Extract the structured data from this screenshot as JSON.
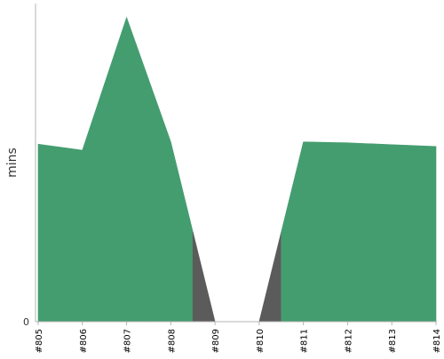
{
  "colors": {
    "success": "#449D6F",
    "failure": "#5B5B5B",
    "axis": "#B4B4B4",
    "text": "#333333"
  },
  "chart_data": {
    "type": "area",
    "ylabel": "mins",
    "xlabel": "",
    "y_tick_labels": [
      "0"
    ],
    "ylim": [
      0,
      6.9
    ],
    "categories": [
      "#805",
      "#806",
      "#807",
      "#808",
      "#809",
      "#810",
      "#811",
      "#812",
      "#813",
      "#814"
    ],
    "values": [
      3.85,
      3.72,
      6.6,
      3.9,
      0,
      0,
      3.9,
      3.88,
      3.84,
      3.8
    ],
    "status": [
      "success",
      "success",
      "success",
      "success",
      "failure",
      "failure",
      "success",
      "success",
      "success",
      "success"
    ],
    "legend": "none",
    "grid": false
  }
}
